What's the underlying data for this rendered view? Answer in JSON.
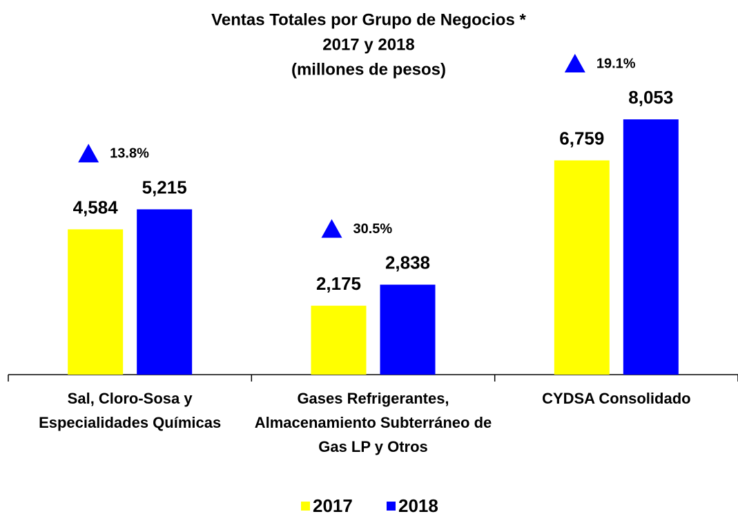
{
  "chart_data": {
    "type": "bar",
    "title": "Ventas Totales por Grupo de Negocios *",
    "subtitle": "2017 y 2018",
    "units": "(millones de pesos)",
    "categories": [
      "Sal, Cloro-Sosa y Especialidades Químicas",
      "Gases Refrigerantes, Almacenamiento Subterráneo de Gas LP y Otros",
      "CYDSA Consolidado"
    ],
    "series": [
      {
        "name": "2017",
        "color": "#ffff00",
        "values": [
          4584,
          2175,
          6759
        ],
        "value_labels": [
          "4,584",
          "2,175",
          "6,759"
        ]
      },
      {
        "name": "2018",
        "color": "#0000ff",
        "values": [
          5215,
          2838,
          8053
        ],
        "value_labels": [
          "5,215",
          "2,838",
          "8,053"
        ]
      }
    ],
    "growth_labels": [
      "13.8%",
      "30.5%",
      "19.1%"
    ],
    "growth_color": "#0000ff",
    "ylim": [
      0,
      9000
    ]
  }
}
